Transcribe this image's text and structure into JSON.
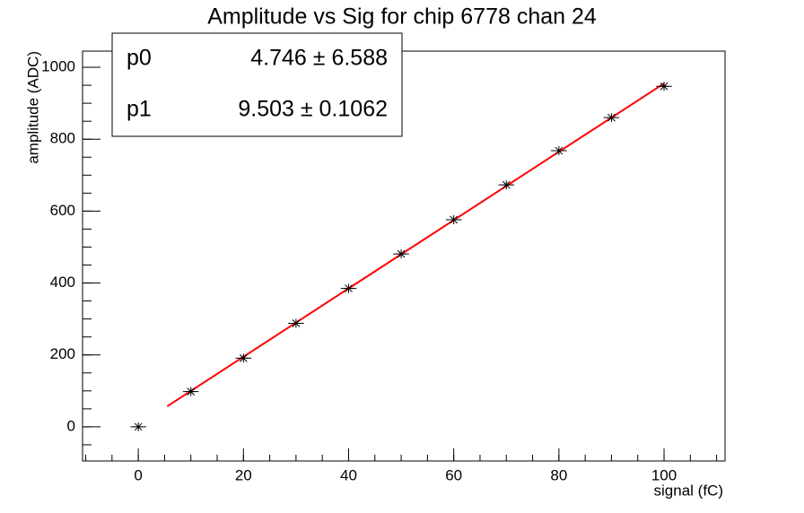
{
  "chart_data": {
    "type": "scatter",
    "title": "Amplitude vs Sig for chip 6778 chan 24",
    "x_label": "signal (fC)",
    "y_label": "amplitude (ADC)",
    "xlim": [
      -10.6,
      111.6
    ],
    "ylim": [
      -95,
      1045
    ],
    "xticks": [
      0,
      20,
      40,
      60,
      80,
      100
    ],
    "yticks": [
      0,
      200,
      400,
      600,
      800,
      1000
    ],
    "series": [
      {
        "color": "#000000",
        "x": [
          0,
          10,
          20,
          30,
          40,
          50,
          60,
          70,
          80,
          90,
          100
        ],
        "values": [
          0,
          98,
          191,
          288,
          385,
          481,
          576,
          673,
          768,
          860,
          947
        ],
        "xerr": 1.5
      }
    ],
    "fit": {
      "color": "#ff0000",
      "x": [
        5.5,
        100
      ],
      "values": [
        57.0,
        955.0
      ]
    },
    "stats": [
      {
        "name": "p0",
        "value": "4.746 ± 6.588"
      },
      {
        "name": "p1",
        "value": "9.503 ± 0.1062"
      }
    ]
  }
}
